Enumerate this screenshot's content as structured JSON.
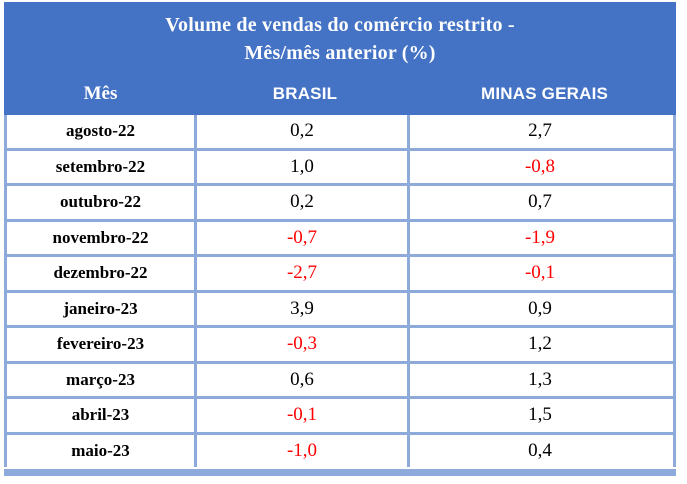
{
  "table": {
    "title_line1": "Volume de vendas do comércio restrito -",
    "title_line2": "Mês/mês anterior (%)",
    "columns": {
      "month": "Mês",
      "brasil": "BRASIL",
      "minas": "MINAS GERAIS"
    },
    "rows": [
      {
        "month": "agosto-22",
        "brasil": "0,2",
        "minas": "2,7"
      },
      {
        "month": "setembro-22",
        "brasil": "1,0",
        "minas": "-0,8"
      },
      {
        "month": "outubro-22",
        "brasil": "0,2",
        "minas": "0,7"
      },
      {
        "month": "novembro-22",
        "brasil": "-0,7",
        "minas": "-1,9"
      },
      {
        "month": "dezembro-22",
        "brasil": "-2,7",
        "minas": "-0,1"
      },
      {
        "month": "janeiro-23",
        "brasil": "3,9",
        "minas": "0,9"
      },
      {
        "month": "fevereiro-23",
        "brasil": "-0,3",
        "minas": "1,2"
      },
      {
        "month": "março-23",
        "brasil": "0,6",
        "minas": "1,3"
      },
      {
        "month": "abril-23",
        "brasil": "-0,1",
        "minas": "1,5"
      },
      {
        "month": "maio-23",
        "brasil": "-1,0",
        "minas": "0,4"
      }
    ]
  },
  "colors": {
    "header_blue": "#4472C4",
    "grid_blue": "#8EAADB",
    "negative_red": "#FF0000",
    "title_text": "#FFFFFF",
    "body_text": "#000000"
  },
  "chart_data": {
    "type": "table",
    "title": "Volume de vendas do comércio restrito - Mês/mês anterior (%)",
    "columns": [
      "Mês",
      "BRASIL",
      "MINAS GERAIS"
    ],
    "categories": [
      "agosto-22",
      "setembro-22",
      "outubro-22",
      "novembro-22",
      "dezembro-22",
      "janeiro-23",
      "fevereiro-23",
      "março-23",
      "abril-23",
      "maio-23"
    ],
    "series": [
      {
        "name": "BRASIL",
        "values": [
          0.2,
          1.0,
          0.2,
          -0.7,
          -2.7,
          3.9,
          -0.3,
          0.6,
          -0.1,
          -1.0
        ]
      },
      {
        "name": "MINAS GERAIS",
        "values": [
          2.7,
          -0.8,
          0.7,
          -1.9,
          -0.1,
          0.9,
          1.2,
          1.3,
          1.5,
          0.4
        ]
      }
    ],
    "value_unit": "%",
    "negative_values_styled_red": true
  }
}
